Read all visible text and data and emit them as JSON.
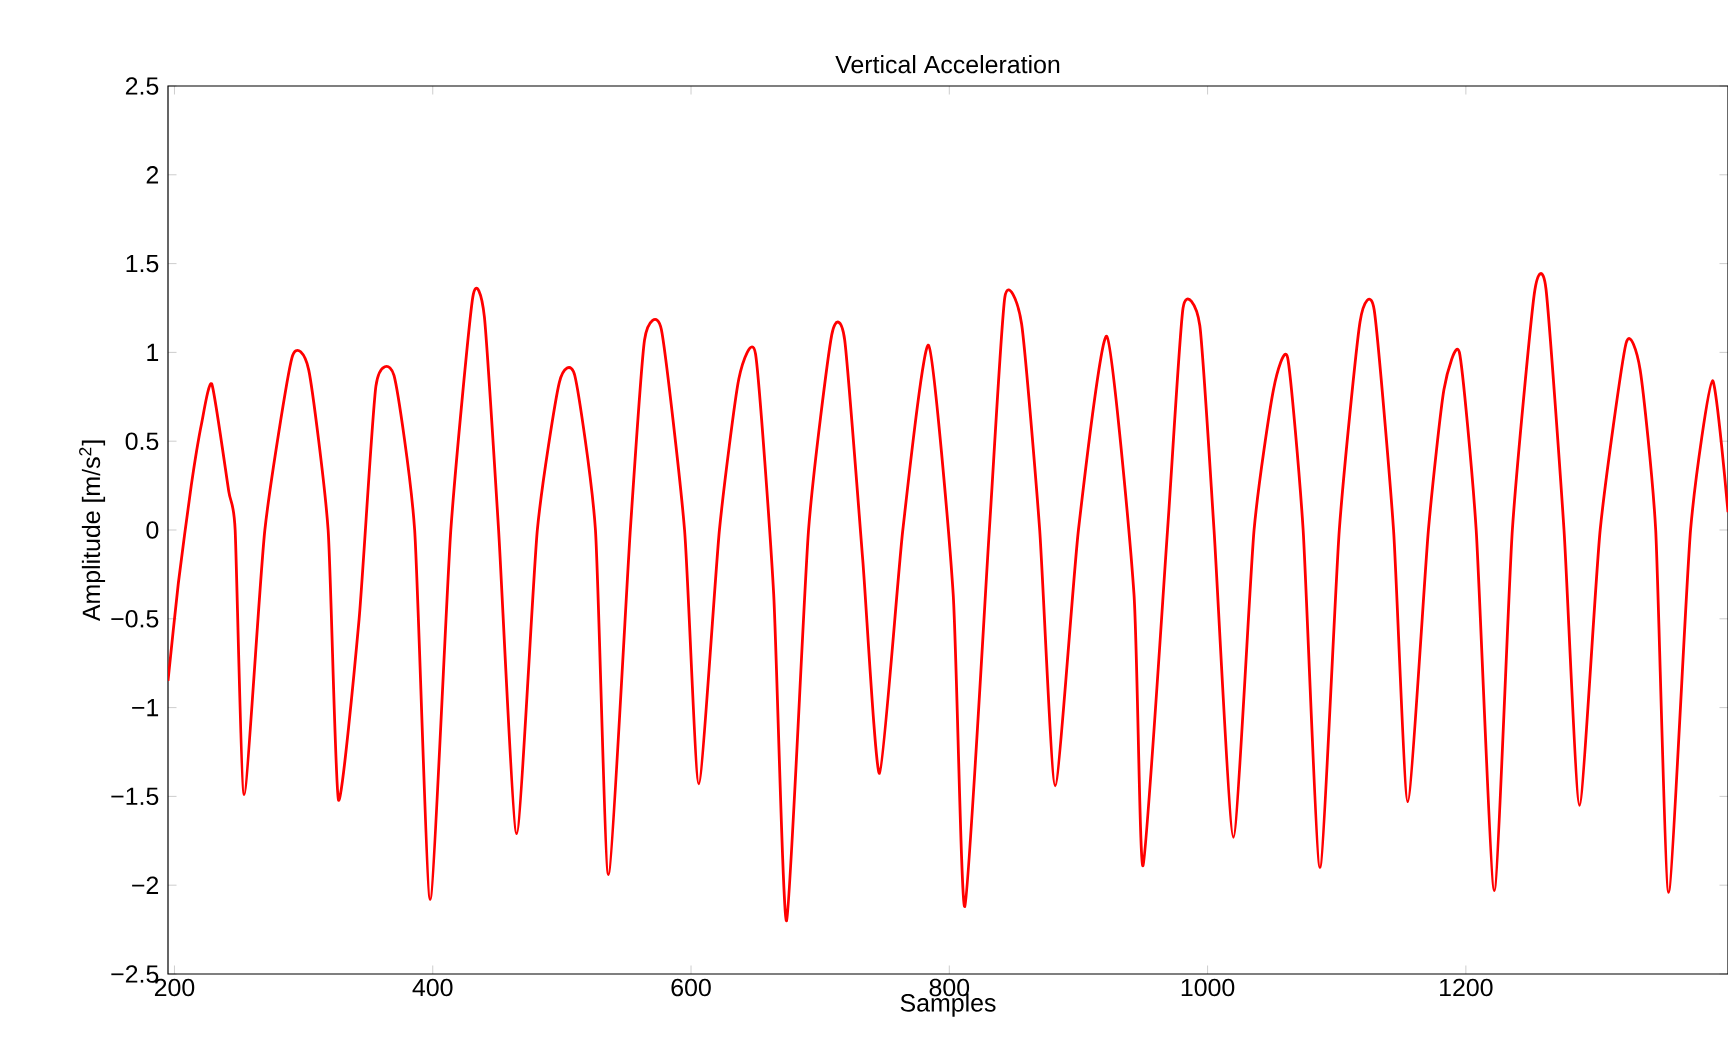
{
  "chart_data": {
    "type": "line",
    "title": "Vertical Acceleration",
    "xlabel": "Samples",
    "ylabel": "Amplitude [m/s$^{2}$]",
    "xlim": [
      195,
      1403
    ],
    "ylim": [
      -2.5,
      2.5
    ],
    "xticks": [
      200,
      400,
      600,
      800,
      1000,
      1200
    ],
    "yticks": [
      {
        "value": -2.5,
        "label": "−2.5"
      },
      {
        "value": -2,
        "label": "−2"
      },
      {
        "value": -1.5,
        "label": "−1.5"
      },
      {
        "value": -1,
        "label": "−1"
      },
      {
        "value": -0.5,
        "label": "−0.5"
      },
      0,
      0.5,
      1,
      1.5,
      2,
      2.5
    ],
    "grid": false,
    "marker": "none",
    "line_style": "solid",
    "series": [
      {
        "color": "#ff0000",
        "x": [
          195,
          203,
          213,
          221,
          229,
          242,
          247,
          254,
          270,
          291,
          304,
          319,
          327,
          343,
          356,
          370,
          386,
          398,
          414,
          431,
          440,
          451,
          465,
          481,
          498,
          510,
          526,
          536,
          553,
          564,
          577,
          595,
          606,
          622,
          637,
          650,
          664,
          674,
          691,
          709,
          719,
          733,
          746,
          764,
          784,
          803,
          812,
          831,
          843,
          856,
          870,
          882,
          900,
          922,
          943,
          950,
          969,
          981,
          994,
          1005,
          1020,
          1036,
          1051,
          1062,
          1074,
          1087,
          1102,
          1118,
          1129,
          1144,
          1155,
          1171,
          1183,
          1195,
          1208,
          1222,
          1236,
          1253,
          1262,
          1276,
          1288,
          1304,
          1324,
          1335,
          1347,
          1357,
          1374,
          1391,
          1403
        ],
        "values": [
          -0.85,
          -0.3,
          0.25,
          0.6,
          0.82,
          0.22,
          0,
          -1.49,
          0,
          0.97,
          0.9,
          0,
          -1.52,
          -0.5,
          0.81,
          0.87,
          0,
          -2.08,
          0,
          1.31,
          1.2,
          0,
          -1.71,
          0,
          0.83,
          0.87,
          0,
          -1.94,
          0,
          1.07,
          1.13,
          0,
          -1.43,
          0,
          0.85,
          0.99,
          -0.36,
          -2.2,
          0,
          1.1,
          1.07,
          -0.17,
          -1.37,
          0,
          1.04,
          -0.36,
          -2.12,
          0,
          1.31,
          1.16,
          0,
          -1.44,
          0,
          1.09,
          -0.36,
          -1.89,
          0,
          1.25,
          1.15,
          0,
          -1.73,
          0,
          0.79,
          0.97,
          0,
          -1.9,
          0,
          1.17,
          1.24,
          0,
          -1.53,
          0,
          0.79,
          1.0,
          0,
          -2.03,
          0,
          1.33,
          1.36,
          0,
          -1.55,
          0,
          1.05,
          0.9,
          0,
          -2.04,
          0,
          0.84,
          0.1
        ]
      }
    ]
  }
}
